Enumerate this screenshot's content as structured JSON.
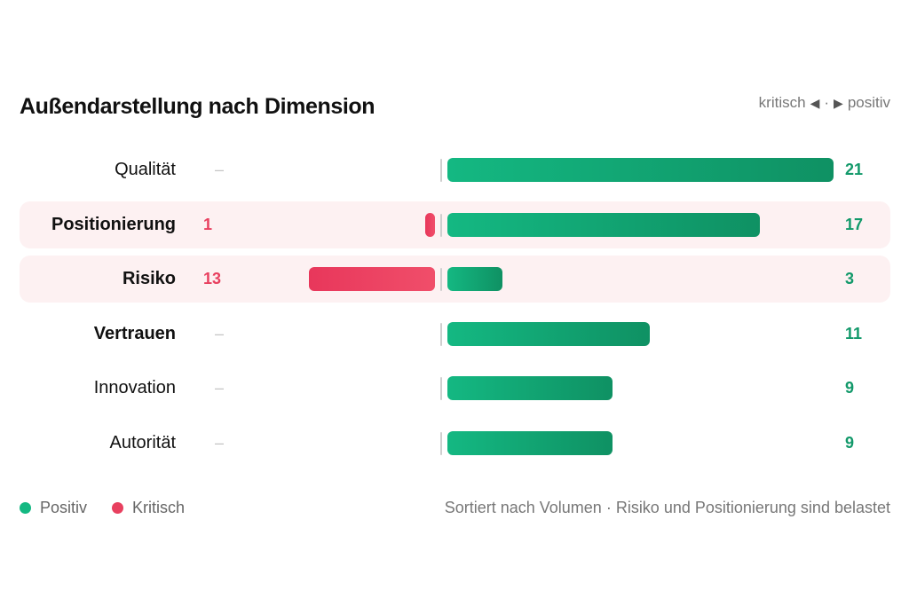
{
  "title": "Außendarstellung nach Dimension",
  "hint": {
    "left": "kritisch",
    "sep": "·",
    "right": "positiv"
  },
  "colors": {
    "positive": "#12996a",
    "critical": "#e8405f",
    "highlight_bg": "#fdf1f2"
  },
  "chart_data": {
    "type": "bar",
    "orientation": "horizontal-diverging",
    "title": "Außendarstellung nach Dimension",
    "categories": [
      "Qualität",
      "Positionierung",
      "Risiko",
      "Vertrauen",
      "Innovation",
      "Autorität"
    ],
    "series": [
      {
        "name": "Positiv",
        "values": [
          21,
          17,
          3,
          11,
          9,
          9
        ]
      },
      {
        "name": "Kritisch",
        "values": [
          0,
          1,
          13,
          0,
          0,
          0
        ]
      }
    ],
    "highlighted": [
      "Positionierung",
      "Risiko"
    ],
    "bold_labels": [
      "Positionierung",
      "Risiko",
      "Vertrauen"
    ],
    "empty_marker": "–",
    "legend": [
      "Positiv",
      "Kritisch"
    ],
    "legend_position": "bottom-left"
  },
  "legend": {
    "positive": "Positiv",
    "critical": "Kritisch"
  },
  "footnote": "Sortiert nach Volumen · Risiko und Positionierung sind belastet"
}
